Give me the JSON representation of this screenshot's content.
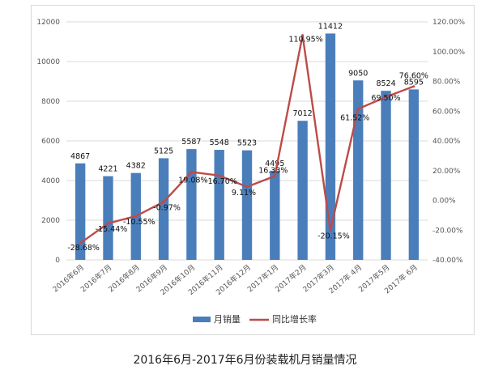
{
  "chart_data": {
    "type": "bar",
    "categories": [
      "2016年6月",
      "2016年7月",
      "2016年8月",
      "2016年9月",
      "2016年10月",
      "2016年11月",
      "2016年12月",
      "2017年1月",
      "2017年2月",
      "2017年3月",
      "2017年 4月",
      "2017年5月",
      "2017年 6月"
    ],
    "series": [
      {
        "name": "月销量",
        "type": "bar",
        "axis": "left",
        "values": [
          4867,
          4221,
          4382,
          5125,
          5587,
          5548,
          5523,
          4495,
          7012,
          11412,
          9050,
          8524,
          8595
        ],
        "labels": [
          "4867",
          "4221",
          "4382",
          "5125",
          "5587",
          "5548",
          "5523",
          "4495",
          "7012",
          "11412",
          "9050",
          "8524",
          "8595"
        ]
      },
      {
        "name": "同比增长率",
        "type": "line",
        "axis": "right",
        "values": [
          -28.68,
          -15.44,
          -10.55,
          -0.97,
          19.08,
          16.7,
          9.11,
          16.33,
          110.95,
          -20.15,
          61.52,
          69.5,
          76.6
        ],
        "labels": [
          "-28.68%",
          "-15.44%",
          "-10.55%",
          "-0.97%",
          "19.08%",
          "16.70%",
          "9.11%",
          "16.33%",
          "110.95%",
          "-20.15%",
          "61.52%",
          "69.50%",
          "76.60%"
        ]
      }
    ],
    "y_left": {
      "range": [
        0,
        12000
      ],
      "ticks": [
        "0",
        "2000",
        "4000",
        "6000",
        "8000",
        "10000",
        "12000"
      ]
    },
    "y_right": {
      "range": [
        -40,
        120
      ],
      "ticks": [
        "-40.00%",
        "-20.00%",
        "0.00%",
        "20.00%",
        "40.00%",
        "60.00%",
        "80.00%",
        "100.00%",
        "120.00%"
      ]
    },
    "grid": true,
    "legend_position": "bottom",
    "colors": {
      "bar": "#4a7ebb",
      "line": "#be4b48",
      "grid": "#d9d9d9"
    },
    "title": "2016年6月-2017年6月份装载机月销量情况"
  }
}
